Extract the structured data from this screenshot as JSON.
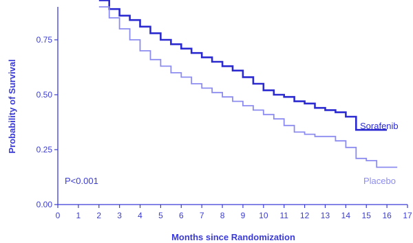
{
  "chart_data": {
    "type": "line",
    "title": "",
    "xlabel": "Months since Randomization",
    "ylabel": "Probability of Survival",
    "xlim": [
      0,
      17
    ],
    "ylim": [
      0,
      0.9
    ],
    "x_ticks": [
      0,
      1,
      2,
      3,
      4,
      5,
      6,
      7,
      8,
      9,
      10,
      11,
      12,
      13,
      14,
      15,
      16,
      17
    ],
    "y_ticks": [
      0.0,
      0.25,
      0.5,
      0.75
    ],
    "y_tick_labels": [
      "0.00",
      "0.25",
      "0.50",
      "0.75"
    ],
    "grid": false,
    "annotation": "P<0.001",
    "series": [
      {
        "name": "Sorafenib",
        "color": "#2a2ad0",
        "x": [
          2.0,
          2.5,
          3.0,
          3.5,
          4.0,
          4.5,
          5.0,
          5.5,
          6.0,
          6.5,
          7.0,
          7.5,
          8.0,
          8.5,
          9.0,
          9.5,
          10.0,
          10.5,
          11.0,
          11.5,
          12.0,
          12.5,
          13.0,
          13.5,
          14.0,
          14.5,
          15.0,
          15.5,
          16.0
        ],
        "y": [
          0.93,
          0.89,
          0.86,
          0.84,
          0.81,
          0.78,
          0.75,
          0.73,
          0.71,
          0.69,
          0.67,
          0.65,
          0.63,
          0.61,
          0.58,
          0.55,
          0.52,
          0.5,
          0.49,
          0.47,
          0.46,
          0.44,
          0.43,
          0.42,
          0.4,
          0.34,
          0.34,
          0.34,
          0.34
        ]
      },
      {
        "name": "Placebo",
        "color": "#8c8cf0",
        "x": [
          2.0,
          2.5,
          3.0,
          3.5,
          4.0,
          4.5,
          5.0,
          5.5,
          6.0,
          6.5,
          7.0,
          7.5,
          8.0,
          8.5,
          9.0,
          9.5,
          10.0,
          10.5,
          11.0,
          11.5,
          12.0,
          12.5,
          13.0,
          13.5,
          14.0,
          14.5,
          15.0,
          15.5,
          16.0,
          16.5
        ],
        "y": [
          0.9,
          0.85,
          0.8,
          0.75,
          0.7,
          0.66,
          0.63,
          0.6,
          0.58,
          0.55,
          0.53,
          0.51,
          0.49,
          0.47,
          0.45,
          0.43,
          0.41,
          0.39,
          0.36,
          0.33,
          0.32,
          0.31,
          0.31,
          0.29,
          0.26,
          0.21,
          0.2,
          0.17,
          0.17,
          0.17
        ]
      }
    ]
  }
}
